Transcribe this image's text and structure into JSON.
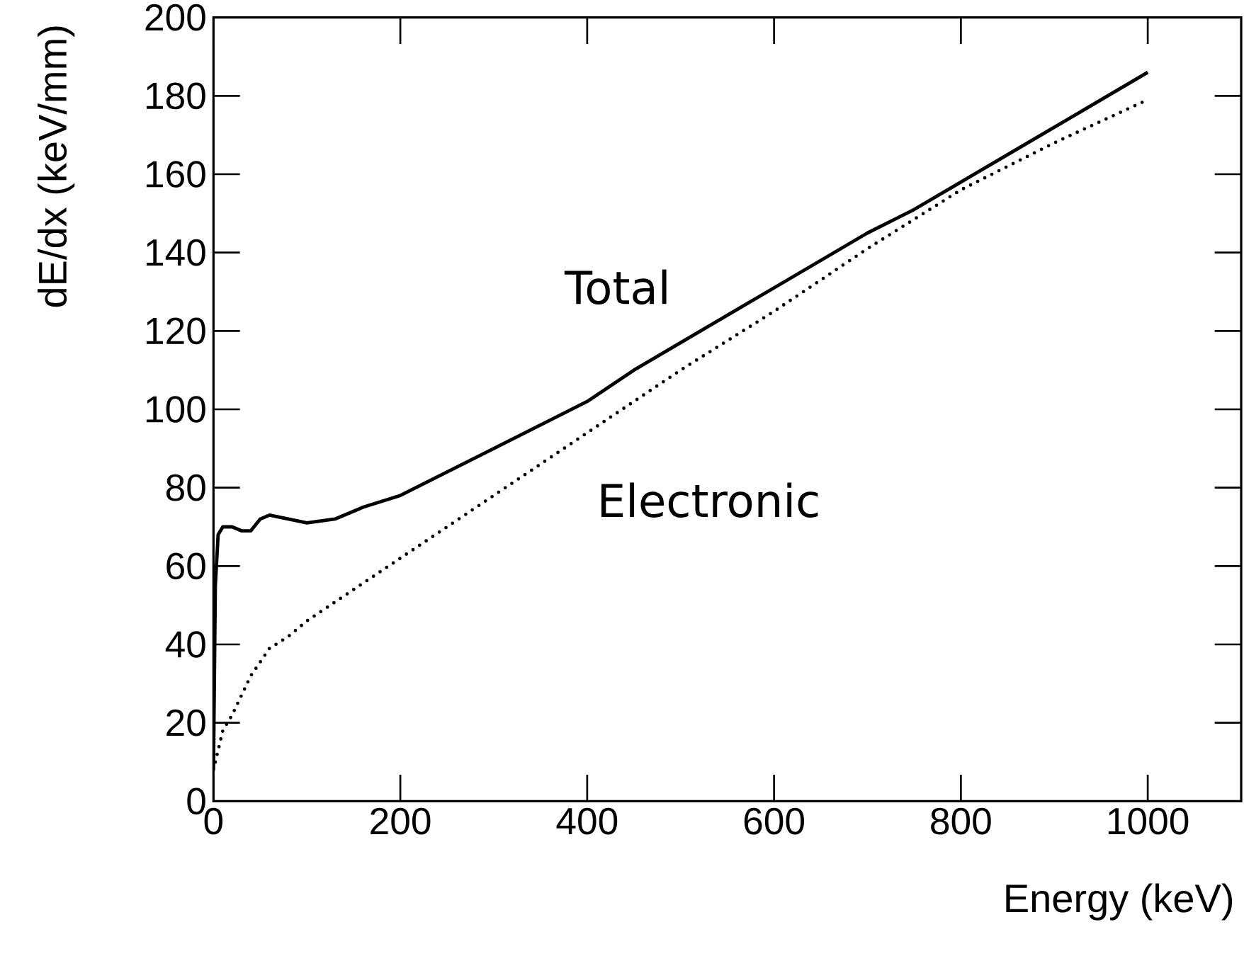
{
  "chart_data": {
    "type": "line",
    "xlabel": "Energy (keV)",
    "ylabel": "dE/dx (keV/mm)",
    "xlim": [
      0,
      1100
    ],
    "ylim": [
      0,
      200
    ],
    "xticks": [
      0,
      200,
      400,
      600,
      800,
      1000
    ],
    "yticks": [
      0,
      20,
      40,
      60,
      80,
      100,
      120,
      140,
      160,
      180,
      200
    ],
    "legend": false,
    "grid": false,
    "marker": "none",
    "series": [
      {
        "name": "Total",
        "color": "#000000",
        "line_style": "solid",
        "x": [
          0,
          2,
          5,
          10,
          20,
          30,
          40,
          50,
          60,
          80,
          100,
          130,
          160,
          200,
          250,
          300,
          350,
          400,
          450,
          500,
          550,
          600,
          650,
          700,
          750,
          800,
          850,
          900,
          950,
          1000
        ],
        "values": [
          8,
          55,
          68,
          70,
          70,
          69,
          69,
          72,
          73,
          72,
          71,
          72,
          75,
          78,
          84,
          90,
          96,
          102,
          110,
          117,
          124,
          131,
          138,
          145,
          151,
          158,
          165,
          172,
          179,
          186
        ]
      },
      {
        "name": "Electronic",
        "color": "#000000",
        "line_style": "dotted",
        "x": [
          0,
          10,
          20,
          40,
          60,
          80,
          100,
          150,
          200,
          300,
          400,
          500,
          600,
          700,
          800,
          900,
          1000
        ],
        "values": [
          8,
          18,
          22,
          32,
          39,
          42,
          46,
          54,
          62,
          78,
          94,
          110,
          125,
          141,
          156,
          168,
          179
        ]
      }
    ]
  }
}
